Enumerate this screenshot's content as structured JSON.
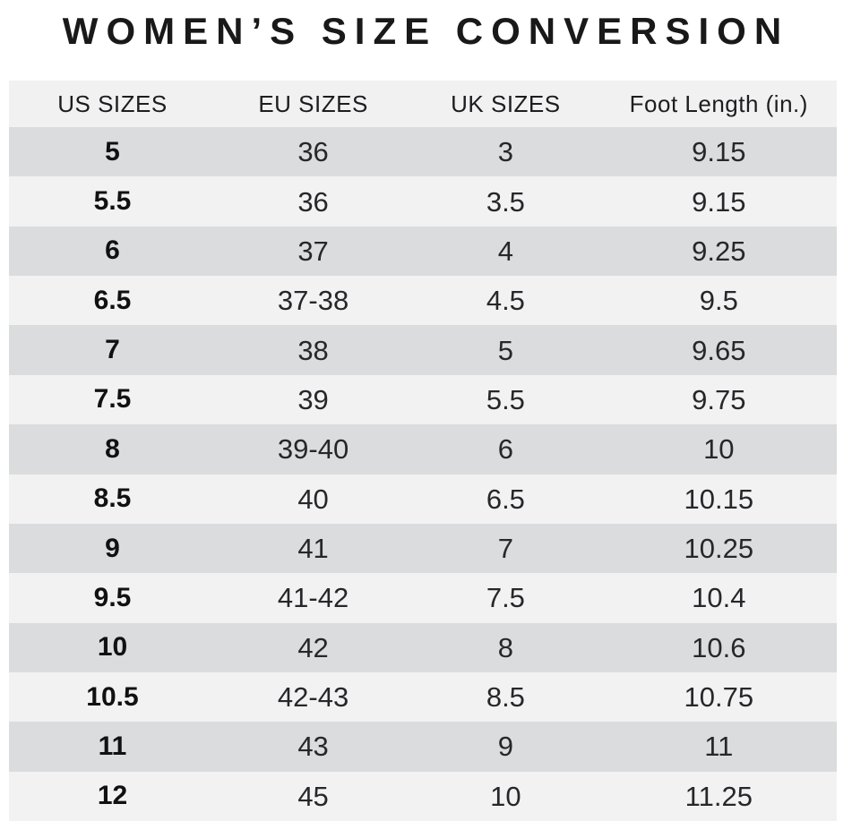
{
  "chart_data": {
    "type": "table",
    "title": "WOMEN’S SIZE CONVERSION",
    "columns": [
      "US SIZES",
      "EU SIZES",
      "UK SIZES",
      "Foot Length (in.)"
    ],
    "rows": [
      [
        "5",
        "36",
        "3",
        "9.15"
      ],
      [
        "5.5",
        "36",
        "3.5",
        "9.15"
      ],
      [
        "6",
        "37",
        "4",
        "9.25"
      ],
      [
        "6.5",
        "37-38",
        "4.5",
        "9.5"
      ],
      [
        "7",
        "38",
        "5",
        "9.65"
      ],
      [
        "7.5",
        "39",
        "5.5",
        "9.75"
      ],
      [
        "8",
        "39-40",
        "6",
        "10"
      ],
      [
        "8.5",
        "40",
        "6.5",
        "10.15"
      ],
      [
        "9",
        "41",
        "7",
        "10.25"
      ],
      [
        "9.5",
        "41-42",
        "7.5",
        "10.4"
      ],
      [
        "10",
        "42",
        "8",
        "10.6"
      ],
      [
        "10.5",
        "42-43",
        "8.5",
        "10.75"
      ],
      [
        "11",
        "43",
        "9",
        "11"
      ],
      [
        "12",
        "45",
        "10",
        "11.25"
      ]
    ],
    "layout": {
      "bold_column": "US SIZES",
      "row_striping": "odd rows dark, even rows light",
      "legend_position": "none",
      "grid": false
    }
  },
  "colors": {
    "row_dark": "#dbdcde",
    "row_light": "#f2f2f3",
    "header_bg": "#f1f1f2",
    "title_text": "#191919",
    "body_text": "#27272a",
    "background": "#ffffff"
  }
}
